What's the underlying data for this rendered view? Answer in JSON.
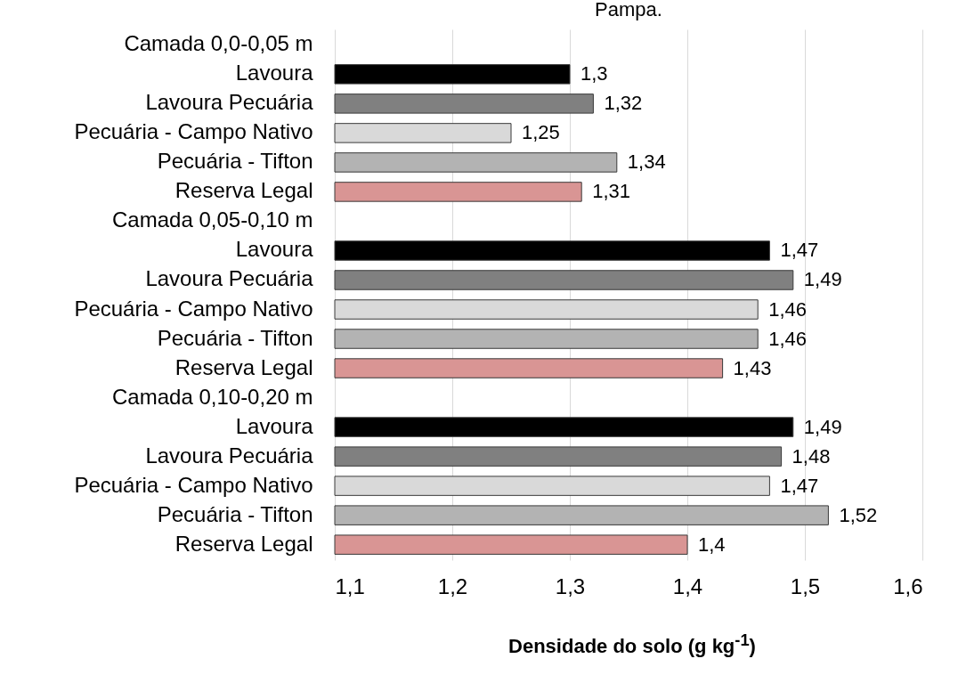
{
  "chart_data": {
    "type": "bar",
    "orientation": "horizontal",
    "title": "Pampa.",
    "xlabel": "Densidade do solo (g kg$^{-1}$)",
    "categories": [
      "Camada 0,0-0,05 m",
      "Lavoura",
      "Lavoura Pecuária",
      "Pecuária - Campo Nativo",
      "Pecuária - Tifton",
      "Reserva Legal",
      "Camada 0,05-0,10 m",
      "Lavoura",
      "Lavoura Pecuária",
      "Pecuária - Campo Nativo",
      "Pecuária - Tifton",
      "Reserva Legal",
      "Camada 0,10-0,20 m",
      "Lavoura",
      "Lavoura Pecuária",
      "Pecuária - Campo Nativo",
      "Pecuária - Tifton",
      "Reserva Legal"
    ],
    "values": [
      null,
      1.3,
      1.32,
      1.25,
      1.34,
      1.31,
      null,
      1.47,
      1.49,
      1.46,
      1.46,
      1.43,
      null,
      1.49,
      1.48,
      1.47,
      1.52,
      1.4
    ],
    "value_labels": [
      null,
      "1,3",
      "1,32",
      "1,25",
      "1,34",
      "1,31",
      null,
      "1,47",
      "1,49",
      "1,46",
      "1,46",
      "1,43",
      null,
      "1,49",
      "1,48",
      "1,47",
      "1,52",
      "1,4"
    ],
    "colors": [
      null,
      "#000000",
      "#808080",
      "#d9d9d9",
      "#b3b3b3",
      "#d99594",
      null,
      "#000000",
      "#808080",
      "#d9d9d9",
      "#b3b3b3",
      "#d99594",
      null,
      "#000000",
      "#808080",
      "#d9d9d9",
      "#b3b3b3",
      "#d99594"
    ],
    "xlim": [
      1.1,
      1.6
    ],
    "xticks": [
      {
        "value": 1.1,
        "label": "1,1"
      },
      {
        "value": 1.2,
        "label": "1,2"
      },
      {
        "value": 1.3,
        "label": "1,3"
      },
      {
        "value": 1.4,
        "label": "1,4"
      },
      {
        "value": 1.5,
        "label": "1,5"
      },
      {
        "value": 1.6,
        "label": "1,6"
      }
    ],
    "grid": "x"
  }
}
